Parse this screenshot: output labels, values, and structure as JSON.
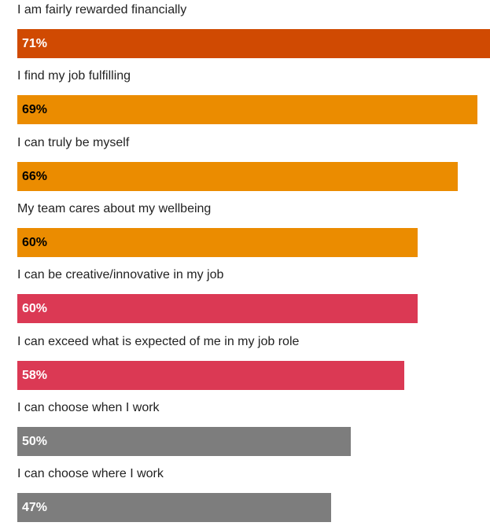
{
  "chart_data": {
    "type": "bar",
    "orientation": "horizontal",
    "xlim": [
      0,
      71
    ],
    "categories": [
      "I am fairly rewarded financially",
      "I find my job fulfilling",
      "I can truly be myself",
      "My team cares about my wellbeing",
      "I can be creative/innovative in my job",
      "I can exceed what is expected of me in my job role",
      "I can choose when I work",
      "I can choose where I work"
    ],
    "values": [
      71,
      69,
      66,
      60,
      60,
      58,
      50,
      47
    ],
    "value_labels": [
      "71%",
      "69%",
      "66%",
      "60%",
      "60%",
      "58%",
      "50%",
      "47%"
    ],
    "bar_colors": [
      "#D04A02",
      "#EB8C00",
      "#EB8C00",
      "#EB8C00",
      "#DB3954",
      "#DB3954",
      "#7D7D7D",
      "#7D7D7D"
    ],
    "label_colors": [
      "#FFFFFF",
      "#000000",
      "#000000",
      "#000000",
      "#FFFFFF",
      "#FFFFFF",
      "#FFFFFF",
      "#FFFFFF"
    ]
  }
}
